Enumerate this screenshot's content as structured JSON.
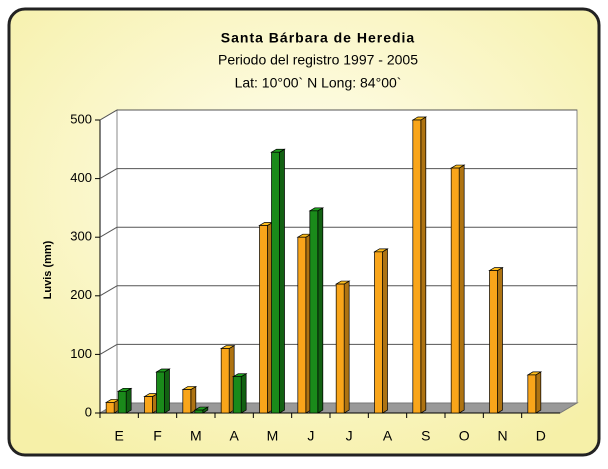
{
  "chart_data": {
    "type": "bar3d",
    "title": "Santa Bárbara de Heredia",
    "subtitle": "Periodo del registro 1997 - 2005",
    "subtitle2": "Lat: 10°00` N Long: 84°00`",
    "y_label": "Luvis (mm)",
    "categories": [
      "E",
      "F",
      "M",
      "A",
      "M",
      "J",
      "J",
      "A",
      "S",
      "O",
      "N",
      "D"
    ],
    "series": [
      {
        "color": "#f9a51a",
        "values": [
          18,
          28,
          40,
          110,
          320,
          300,
          220,
          275,
          500,
          418,
          243,
          65
        ]
      },
      {
        "color": "#1a8a1a",
        "values": [
          37,
          70,
          5,
          62,
          445,
          345,
          null,
          null,
          null,
          null,
          null,
          null
        ]
      }
    ],
    "ylim": [
      0,
      500
    ],
    "yticks": [
      0,
      100,
      200,
      300,
      400,
      500
    ],
    "grid": true
  }
}
